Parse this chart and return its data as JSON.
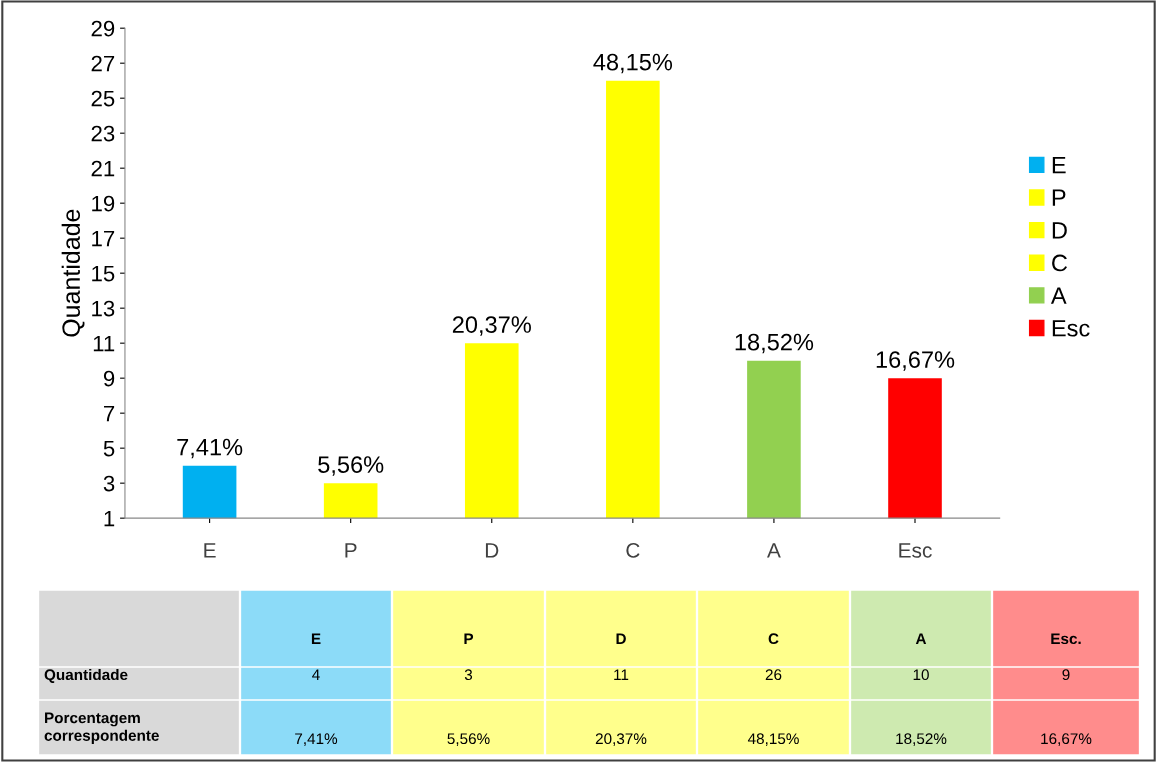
{
  "chart_data": {
    "type": "bar",
    "categories": [
      "E",
      "P",
      "D",
      "C",
      "A",
      "Esc"
    ],
    "series": [
      {
        "name": "E",
        "color": "#00b0f0",
        "values": [
          4,
          null,
          null,
          null,
          null,
          null
        ]
      },
      {
        "name": "P",
        "color": "#ffff00",
        "values": [
          null,
          3,
          null,
          null,
          null,
          null
        ]
      },
      {
        "name": "D",
        "color": "#ffff00",
        "values": [
          null,
          null,
          11,
          null,
          null,
          null
        ]
      },
      {
        "name": "C",
        "color": "#ffff00",
        "values": [
          null,
          null,
          null,
          26,
          null,
          null
        ]
      },
      {
        "name": "A",
        "color": "#92d050",
        "values": [
          null,
          null,
          null,
          null,
          10,
          null
        ]
      },
      {
        "name": "Esc",
        "color": "#ff0000",
        "values": [
          null,
          null,
          null,
          null,
          null,
          9
        ]
      }
    ],
    "grid": false,
    "ylabel": "Quantidade",
    "ylim": [
      1,
      29
    ],
    "yticks": [
      1,
      3,
      5,
      7,
      9,
      11,
      13,
      15,
      17,
      19,
      21,
      23,
      25,
      27,
      29
    ],
    "legend": "right",
    "annotations": [
      {
        "text": "7,41%",
        "x": "E",
        "y": 4
      },
      {
        "text": "5,56%",
        "x": "P",
        "y": 3
      },
      {
        "text": "20,37%",
        "x": "D",
        "y": 11
      },
      {
        "text": "48,15%",
        "x": "C",
        "y": 26
      },
      {
        "text": "18,52%",
        "x": "A",
        "y": 10
      },
      {
        "text": "16,67%",
        "x": "Esc",
        "y": 9
      },
      "E",
      "P",
      "D",
      "C",
      "A",
      "Esc.",
      "Quantidade",
      "Porcentagem\ncorrespondente",
      "4",
      "3",
      "11",
      "26",
      "10",
      "9"
    ]
  }
}
